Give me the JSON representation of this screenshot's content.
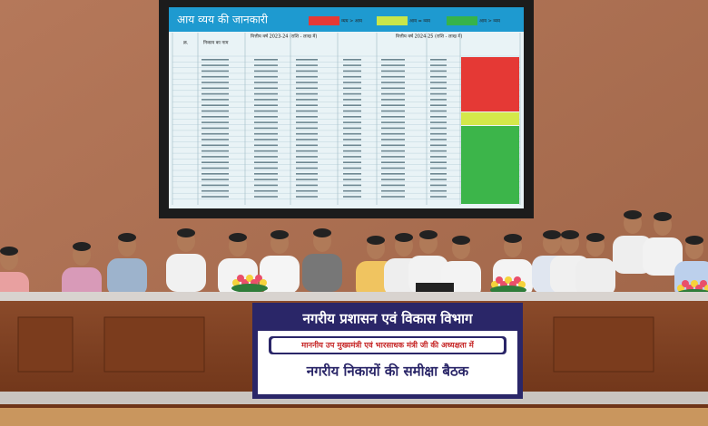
{
  "screen": {
    "title": "आय व्यय की जानकारी",
    "legend": [
      "व्यय > आय",
      "आय = व्यय",
      "आय > व्यय"
    ],
    "table": {
      "headers": [
        "क्र.",
        "निकाय का नाम",
        "वित्तीय वर्ष 2023-24 (राशि - लाख में)",
        "वित्तीय वर्ष 2024-25 (राशि - लाख में)"
      ]
    }
  },
  "banner": {
    "title": "नगरीय प्रशासन एवं विकास विभाग",
    "subtitle": "माननीय उप मुख्यमंत्री एवं भारसाधक मंत्री जी की अध्यक्षता में",
    "heading": "नगरीय निकायों की समीक्षा बैठक"
  }
}
